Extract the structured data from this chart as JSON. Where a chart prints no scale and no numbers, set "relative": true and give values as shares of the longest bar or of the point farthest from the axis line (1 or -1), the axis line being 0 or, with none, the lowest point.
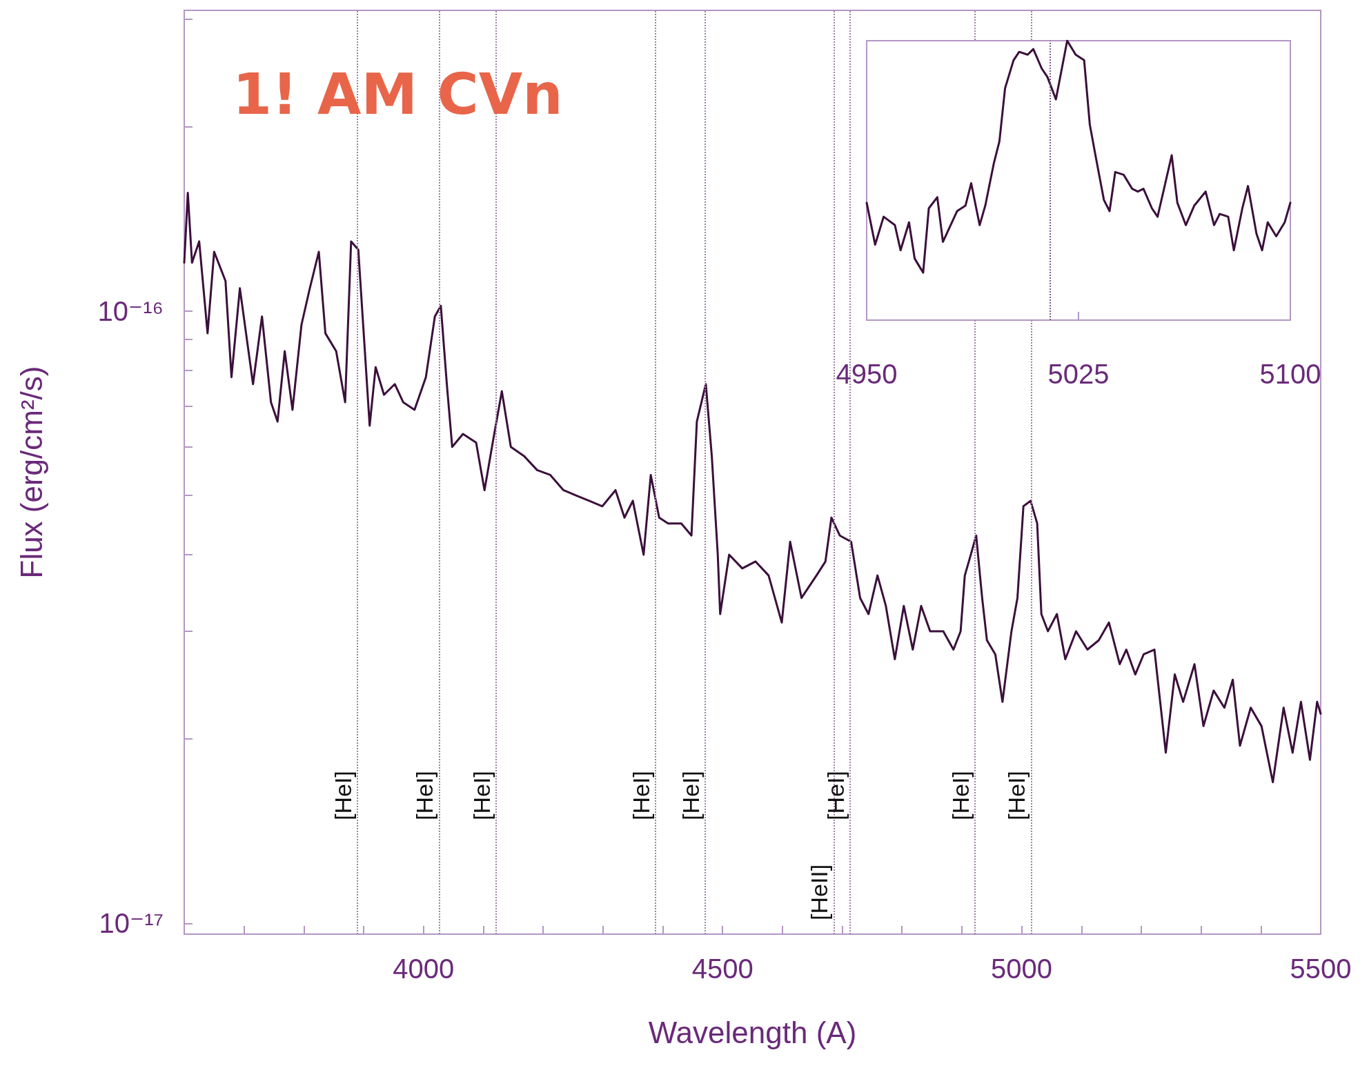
{
  "chart_data": [
    {
      "type": "line",
      "title": "1! AM CVn",
      "xlabel": "Wavelength (A)",
      "ylabel": "Flux (erg/cm²/s)",
      "log": "y",
      "grid": false,
      "marker": "none",
      "line_style": "solid",
      "xlim": [
        3600,
        5500
      ],
      "ylim": [
        9.6e-18,
        3.1e-16
      ],
      "xticks": [
        {
          "value": 3700,
          "label": null
        },
        {
          "value": 3800,
          "label": null
        },
        {
          "value": 3900,
          "label": null
        },
        4000,
        {
          "value": 4100,
          "label": null
        },
        {
          "value": 4200,
          "label": null
        },
        {
          "value": 4300,
          "label": null
        },
        {
          "value": 4400,
          "label": null
        },
        4500,
        {
          "value": 4600,
          "label": null
        },
        {
          "value": 4700,
          "label": null
        },
        {
          "value": 4800,
          "label": null
        },
        {
          "value": 4900,
          "label": null
        },
        5000,
        {
          "value": 5100,
          "label": null
        },
        {
          "value": 5200,
          "label": null
        },
        {
          "value": 5300,
          "label": null
        },
        {
          "value": 5400,
          "label": null
        },
        5500
      ],
      "yticks": [
        {
          "value": 1e-17,
          "label": "10⁻¹⁷"
        },
        {
          "value": 2e-17,
          "label": null
        },
        {
          "value": 3e-17,
          "label": null
        },
        {
          "value": 4e-17,
          "label": null
        },
        {
          "value": 5e-17,
          "label": null
        },
        {
          "value": 6e-17,
          "label": null
        },
        {
          "value": 7e-17,
          "label": null
        },
        {
          "value": 8e-17,
          "label": null
        },
        {
          "value": 9e-17,
          "label": null
        },
        {
          "value": 1e-16,
          "label": "10⁻¹⁶"
        },
        {
          "value": 2e-16,
          "label": null
        },
        {
          "value": 3e-16,
          "label": null
        }
      ],
      "x": [
        3600,
        3606,
        3613,
        3625,
        3639,
        3650,
        3669,
        3679,
        3693,
        3715,
        3730,
        3745,
        3756,
        3768,
        3781,
        3796,
        3810,
        3825,
        3836,
        3854,
        3869,
        3879,
        3891,
        3902,
        3910,
        3920,
        3934,
        3952,
        3966,
        3985,
        4004,
        4019,
        4029,
        4039,
        4048,
        4066,
        4088,
        4102,
        4117,
        4131,
        4146,
        4168,
        4190,
        4212,
        4234,
        4255,
        4277,
        4299,
        4321,
        4336,
        4350,
        4368,
        4380,
        4394,
        4409,
        4431,
        4448,
        4457,
        4472,
        4482,
        4492,
        4496,
        4511,
        4533,
        4555,
        4577,
        4599,
        4613,
        4632,
        4657,
        4672,
        4682,
        4696,
        4715,
        4730,
        4744,
        4759,
        4773,
        4788,
        4803,
        4818,
        4832,
        4847,
        4869,
        4886,
        4898,
        4905,
        4915,
        4924,
        4934,
        4942,
        4956,
        4968,
        4983,
        4993,
        5003,
        5015,
        5026,
        5033,
        5044,
        5059,
        5073,
        5091,
        5110,
        5129,
        5146,
        5164,
        5175,
        5190,
        5204,
        5222,
        5241,
        5256,
        5270,
        5289,
        5304,
        5321,
        5339,
        5353,
        5365,
        5383,
        5401,
        5420,
        5438,
        5453,
        5467,
        5482,
        5494,
        5500
      ],
      "series": [
        {
          "color": "#3b0f3b",
          "values": [
            1.2e-16,
            1.56e-16,
            1.2e-16,
            1.3e-16,
            9.2e-17,
            1.25e-16,
            1.12e-16,
            7.8e-17,
            1.09e-16,
            7.6e-17,
            9.8e-17,
            7.1e-17,
            6.6e-17,
            8.6e-17,
            6.9e-17,
            9.5e-17,
            1.09e-16,
            1.25e-16,
            9.2e-17,
            8.6e-17,
            7.1e-17,
            1.3e-16,
            1.26e-16,
            8.6e-17,
            6.5e-17,
            8.1e-17,
            7.3e-17,
            7.6e-17,
            7.1e-17,
            6.9e-17,
            7.8e-17,
            9.8e-17,
            1.02e-16,
            7.6e-17,
            6e-17,
            6.3e-17,
            6.1e-17,
            5.1e-17,
            6.2e-17,
            7.4e-17,
            6e-17,
            5.8e-17,
            5.5e-17,
            5.4e-17,
            5.1e-17,
            5e-17,
            4.9e-17,
            4.8e-17,
            5.1e-17,
            4.6e-17,
            4.9e-17,
            4e-17,
            5.4e-17,
            4.6e-17,
            4.5e-17,
            4.5e-17,
            4.3e-17,
            6.6e-17,
            7.6e-17,
            5.8e-17,
            4e-17,
            3.2e-17,
            4e-17,
            3.8e-17,
            3.9e-17,
            3.7e-17,
            3.1e-17,
            4.2e-17,
            3.4e-17,
            3.7e-17,
            3.9e-17,
            4.6e-17,
            4.3e-17,
            4.2e-17,
            3.4e-17,
            3.2e-17,
            3.7e-17,
            3.3e-17,
            2.7e-17,
            3.3e-17,
            2.8e-17,
            3.3e-17,
            3e-17,
            3e-17,
            2.8e-17,
            3e-17,
            3.7e-17,
            4e-17,
            4.3e-17,
            3.4e-17,
            2.9e-17,
            2.75e-17,
            2.3e-17,
            3e-17,
            3.4e-17,
            4.8e-17,
            4.9e-17,
            4.5e-17,
            3.2e-17,
            3e-17,
            3.2e-17,
            2.7e-17,
            3e-17,
            2.8e-17,
            2.9e-17,
            3.1e-17,
            2.65e-17,
            2.8e-17,
            2.55e-17,
            2.75e-17,
            2.8e-17,
            1.9e-17,
            2.55e-17,
            2.3e-17,
            2.65e-17,
            2.1e-17,
            2.4e-17,
            2.25e-17,
            2.5e-17,
            1.95e-17,
            2.25e-17,
            2.1e-17,
            1.7e-17,
            2.25e-17,
            1.9e-17,
            2.3e-17,
            1.85e-17,
            2.3e-17,
            2.2e-17
          ]
        }
      ],
      "ref_lines": [
        {
          "axis": "x",
          "value": 3889,
          "label": "[HeI]",
          "line_style": "dotted",
          "color": "#9a7fa3"
        },
        {
          "axis": "x",
          "value": 4026,
          "label": "[HeI]",
          "line_style": "dotted",
          "color": "#9a7fa3"
        },
        {
          "axis": "x",
          "value": 4121,
          "label": "[HeI]",
          "line_style": "dotted",
          "color": "#9a7fa3"
        },
        {
          "axis": "x",
          "value": 4388,
          "label": "[HeI]",
          "line_style": "dotted",
          "color": "#9a7fa3"
        },
        {
          "axis": "x",
          "value": 4471,
          "label": "[HeI]",
          "line_style": "dotted",
          "color": "#9a7fa3"
        },
        {
          "axis": "x",
          "value": 4686,
          "label": "[HeII]",
          "line_style": "dotted",
          "color": "#9a7fa3"
        },
        {
          "axis": "x",
          "value": 4713,
          "label": "[HeI]",
          "line_style": "dotted",
          "color": "#9a7fa3"
        },
        {
          "axis": "x",
          "value": 4922,
          "label": "[HeI]",
          "line_style": "dotted",
          "color": "#9a7fa3"
        },
        {
          "axis": "x",
          "value": 5016,
          "label": "[HeI]",
          "line_style": "dotted",
          "color": "#9a7fa3"
        }
      ]
    },
    {
      "type": "line",
      "relative": true,
      "tick_labels": "x",
      "grid": false,
      "marker": "none",
      "line_style": "solid",
      "xlim": [
        4950,
        5100
      ],
      "xticks": [
        4950,
        5025,
        5100
      ],
      "x": [
        4950,
        4953,
        4956,
        4960,
        4962,
        4965,
        4967,
        4970,
        4972,
        4975,
        4977,
        4982,
        4985,
        4987,
        4990,
        4992,
        4995,
        4997,
        4999,
        5002,
        5004,
        5007,
        5009,
        5012,
        5014,
        5017,
        5021,
        5024,
        5027,
        5029,
        5031,
        5034,
        5036,
        5038,
        5041,
        5044,
        5046,
        5048,
        5051,
        5053,
        5058,
        5060,
        5063,
        5066,
        5070,
        5073,
        5075,
        5078,
        5080,
        5083,
        5085,
        5088,
        5090,
        5092,
        5095,
        5098,
        5100
      ],
      "series": [
        {
          "color": "#3b0f3b",
          "values": [
            0.42,
            0.27,
            0.37,
            0.34,
            0.25,
            0.35,
            0.22,
            0.17,
            0.4,
            0.44,
            0.28,
            0.39,
            0.41,
            0.49,
            0.34,
            0.41,
            0.56,
            0.64,
            0.83,
            0.93,
            0.96,
            0.95,
            0.97,
            0.9,
            0.87,
            0.79,
            1,
            0.95,
            0.93,
            0.7,
            0.59,
            0.43,
            0.39,
            0.53,
            0.52,
            0.47,
            0.46,
            0.47,
            0.4,
            0.37,
            0.59,
            0.42,
            0.34,
            0.41,
            0.46,
            0.34,
            0.38,
            0.37,
            0.25,
            0.4,
            0.48,
            0.31,
            0.25,
            0.35,
            0.3,
            0.35,
            0.42
          ]
        }
      ],
      "ref_lines": [
        {
          "axis": "x",
          "value": 5015,
          "line_style": "dotted",
          "color": "#7a5a85"
        }
      ]
    }
  ]
}
